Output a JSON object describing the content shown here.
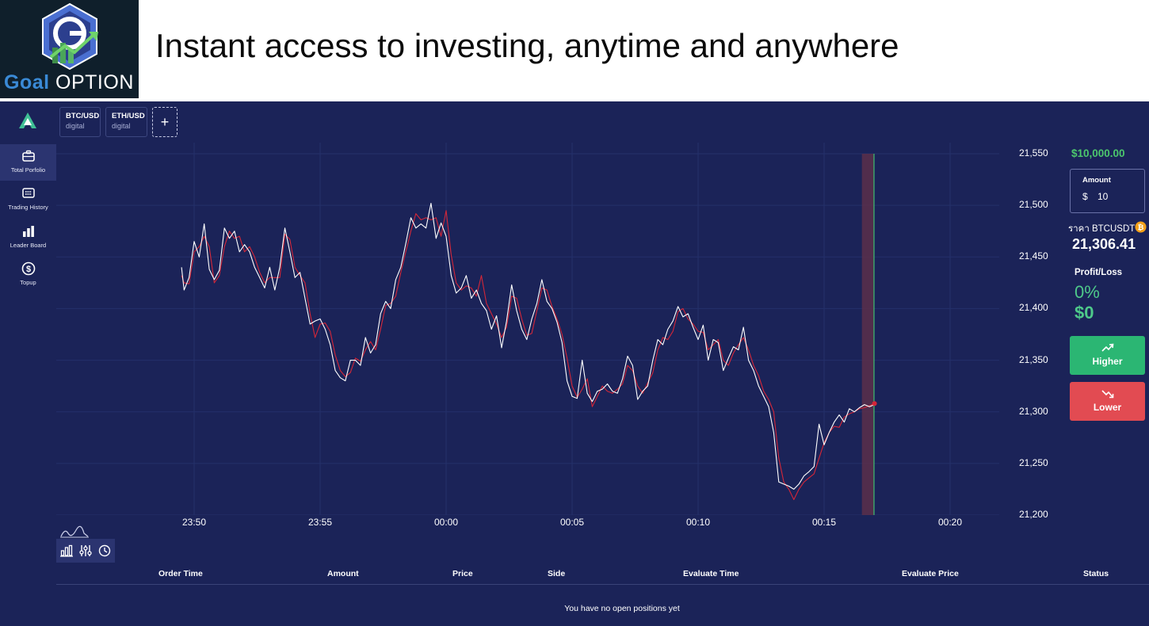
{
  "banner": {
    "logo_goal": "Goal",
    "logo_option": "OPTION",
    "headline": "Instant access to investing, anytime and anywhere"
  },
  "sidebar": {
    "items": [
      {
        "label": "Total Porfolio",
        "icon": "briefcase-icon",
        "active": true
      },
      {
        "label": "Trading History",
        "icon": "history-list-icon",
        "active": false
      },
      {
        "label": "Leader Board",
        "icon": "bar-chart-icon",
        "active": false
      },
      {
        "label": "Topup",
        "icon": "dollar-circle-icon",
        "active": false
      }
    ]
  },
  "tabs": [
    {
      "symbol": "BTC/USD",
      "type": "digital"
    },
    {
      "symbol": "ETH/USD",
      "type": "digital"
    }
  ],
  "add_tab_label": "+",
  "chart_data": {
    "type": "line",
    "x_tick_labels": [
      "23:50",
      "23:55",
      "00:00",
      "00:05",
      "00:10",
      "00:15",
      "00:20"
    ],
    "y_tick_labels": [
      "21,550",
      "21,500",
      "21,450",
      "21,400",
      "21,350",
      "21,300",
      "21,250",
      "21,200"
    ],
    "ylim": [
      21200,
      21550
    ],
    "x_unit": "minutes relative to 00:00",
    "xlim": [
      -11.5,
      24
    ],
    "grid": true,
    "series": [
      {
        "color": "#ffffff",
        "points": [
          [
            -10.5,
            21440
          ],
          [
            -10.4,
            21418
          ],
          [
            -10.2,
            21430
          ],
          [
            -10.0,
            21465
          ],
          [
            -9.8,
            21450
          ],
          [
            -9.6,
            21482
          ],
          [
            -9.4,
            21438
          ],
          [
            -9.2,
            21428
          ],
          [
            -9.0,
            21437
          ],
          [
            -8.8,
            21478
          ],
          [
            -8.6,
            21468
          ],
          [
            -8.4,
            21475
          ],
          [
            -8.2,
            21455
          ],
          [
            -8.0,
            21462
          ],
          [
            -7.8,
            21455
          ],
          [
            -7.6,
            21440
          ],
          [
            -7.4,
            21430
          ],
          [
            -7.2,
            21420
          ],
          [
            -7.0,
            21440
          ],
          [
            -6.8,
            21418
          ],
          [
            -6.6,
            21440
          ],
          [
            -6.4,
            21478
          ],
          [
            -6.2,
            21455
          ],
          [
            -6.0,
            21430
          ],
          [
            -5.8,
            21435
          ],
          [
            -5.6,
            21410
          ],
          [
            -5.4,
            21385
          ],
          [
            -5.2,
            21388
          ],
          [
            -5.0,
            21390
          ],
          [
            -4.8,
            21380
          ],
          [
            -4.6,
            21365
          ],
          [
            -4.4,
            21340
          ],
          [
            -4.2,
            21333
          ],
          [
            -4.0,
            21330
          ],
          [
            -3.8,
            21350
          ],
          [
            -3.6,
            21350
          ],
          [
            -3.4,
            21345
          ],
          [
            -3.2,
            21372
          ],
          [
            -3.0,
            21357
          ],
          [
            -2.8,
            21365
          ],
          [
            -2.6,
            21395
          ],
          [
            -2.4,
            21407
          ],
          [
            -2.2,
            21400
          ],
          [
            -2.0,
            21428
          ],
          [
            -1.8,
            21440
          ],
          [
            -1.6,
            21463
          ],
          [
            -1.4,
            21488
          ],
          [
            -1.2,
            21478
          ],
          [
            -1.0,
            21482
          ],
          [
            -0.8,
            21478
          ],
          [
            -0.6,
            21502
          ],
          [
            -0.4,
            21468
          ],
          [
            -0.2,
            21483
          ],
          [
            0.0,
            21470
          ],
          [
            0.2,
            21432
          ],
          [
            0.4,
            21415
          ],
          [
            0.6,
            21420
          ],
          [
            0.8,
            21432
          ],
          [
            1.0,
            21410
          ],
          [
            1.2,
            21418
          ],
          [
            1.4,
            21405
          ],
          [
            1.6,
            21398
          ],
          [
            1.8,
            21380
          ],
          [
            2.0,
            21393
          ],
          [
            2.2,
            21362
          ],
          [
            2.4,
            21388
          ],
          [
            2.6,
            21423
          ],
          [
            2.8,
            21398
          ],
          [
            3.0,
            21380
          ],
          [
            3.2,
            21370
          ],
          [
            3.4,
            21390
          ],
          [
            3.6,
            21405
          ],
          [
            3.8,
            21428
          ],
          [
            4.0,
            21407
          ],
          [
            4.2,
            21400
          ],
          [
            4.4,
            21387
          ],
          [
            4.6,
            21367
          ],
          [
            4.8,
            21330
          ],
          [
            5.0,
            21315
          ],
          [
            5.2,
            21313
          ],
          [
            5.4,
            21350
          ],
          [
            5.6,
            21318
          ],
          [
            5.8,
            21310
          ],
          [
            6.0,
            21320
          ],
          [
            6.2,
            21322
          ],
          [
            6.4,
            21327
          ],
          [
            6.6,
            21320
          ],
          [
            6.8,
            21318
          ],
          [
            7.0,
            21332
          ],
          [
            7.2,
            21354
          ],
          [
            7.4,
            21345
          ],
          [
            7.6,
            21312
          ],
          [
            7.8,
            21320
          ],
          [
            8.0,
            21325
          ],
          [
            8.2,
            21350
          ],
          [
            8.4,
            21370
          ],
          [
            8.6,
            21365
          ],
          [
            8.8,
            21380
          ],
          [
            9.0,
            21388
          ],
          [
            9.2,
            21402
          ],
          [
            9.4,
            21392
          ],
          [
            9.6,
            21395
          ],
          [
            9.8,
            21382
          ],
          [
            10.0,
            21370
          ],
          [
            10.2,
            21384
          ],
          [
            10.4,
            21350
          ],
          [
            10.6,
            21370
          ],
          [
            10.8,
            21367
          ],
          [
            11.0,
            21340
          ],
          [
            11.2,
            21352
          ],
          [
            11.4,
            21363
          ],
          [
            11.6,
            21360
          ],
          [
            11.8,
            21382
          ],
          [
            12.0,
            21350
          ],
          [
            12.2,
            21340
          ],
          [
            12.4,
            21325
          ],
          [
            12.6,
            21315
          ],
          [
            12.8,
            21305
          ],
          [
            13.0,
            21280
          ],
          [
            13.2,
            21232
          ],
          [
            13.4,
            21230
          ],
          [
            13.6,
            21228
          ],
          [
            13.8,
            21225
          ],
          [
            14.0,
            21230
          ],
          [
            14.2,
            21238
          ],
          [
            14.4,
            21242
          ],
          [
            14.6,
            21247
          ],
          [
            14.8,
            21288
          ],
          [
            15.0,
            21268
          ],
          [
            15.2,
            21280
          ],
          [
            15.4,
            21290
          ],
          [
            15.6,
            21297
          ],
          [
            15.8,
            21290
          ],
          [
            16.0,
            21303
          ],
          [
            16.2,
            21300
          ],
          [
            16.4,
            21304
          ],
          [
            16.6,
            21307
          ],
          [
            16.8,
            21305
          ],
          [
            17.0,
            21307
          ]
        ]
      },
      {
        "color": "#d42638",
        "points": [
          [
            -10.5,
            21432
          ],
          [
            -10.4,
            21425
          ],
          [
            -10.2,
            21424
          ],
          [
            -10.0,
            21455
          ],
          [
            -9.8,
            21460
          ],
          [
            -9.6,
            21470
          ],
          [
            -9.4,
            21460
          ],
          [
            -9.2,
            21425
          ],
          [
            -9.0,
            21432
          ],
          [
            -8.8,
            21460
          ],
          [
            -8.6,
            21475
          ],
          [
            -8.4,
            21468
          ],
          [
            -8.2,
            21470
          ],
          [
            -8.0,
            21455
          ],
          [
            -7.8,
            21460
          ],
          [
            -7.6,
            21450
          ],
          [
            -7.4,
            21435
          ],
          [
            -7.2,
            21425
          ],
          [
            -7.0,
            21430
          ],
          [
            -6.8,
            21430
          ],
          [
            -6.6,
            21430
          ],
          [
            -6.4,
            21472
          ],
          [
            -6.2,
            21467
          ],
          [
            -6.0,
            21440
          ],
          [
            -5.8,
            21432
          ],
          [
            -5.6,
            21425
          ],
          [
            -5.4,
            21395
          ],
          [
            -5.2,
            21372
          ],
          [
            -5.0,
            21385
          ],
          [
            -4.8,
            21386
          ],
          [
            -4.6,
            21378
          ],
          [
            -4.4,
            21355
          ],
          [
            -4.2,
            21340
          ],
          [
            -4.0,
            21334
          ],
          [
            -3.8,
            21338
          ],
          [
            -3.6,
            21352
          ],
          [
            -3.4,
            21349
          ],
          [
            -3.2,
            21360
          ],
          [
            -3.0,
            21368
          ],
          [
            -2.8,
            21360
          ],
          [
            -2.6,
            21380
          ],
          [
            -2.4,
            21403
          ],
          [
            -2.2,
            21405
          ],
          [
            -2.0,
            21412
          ],
          [
            -1.8,
            21435
          ],
          [
            -1.6,
            21455
          ],
          [
            -1.4,
            21475
          ],
          [
            -1.2,
            21492
          ],
          [
            -1.0,
            21486
          ],
          [
            -0.8,
            21488
          ],
          [
            -0.6,
            21486
          ],
          [
            -0.4,
            21488
          ],
          [
            -0.2,
            21470
          ],
          [
            0.0,
            21495
          ],
          [
            0.2,
            21452
          ],
          [
            0.4,
            21425
          ],
          [
            0.6,
            21418
          ],
          [
            0.8,
            21422
          ],
          [
            1.0,
            21420
          ],
          [
            1.2,
            21412
          ],
          [
            1.4,
            21432
          ],
          [
            1.6,
            21405
          ],
          [
            1.8,
            21395
          ],
          [
            2.0,
            21385
          ],
          [
            2.2,
            21372
          ],
          [
            2.4,
            21382
          ],
          [
            2.6,
            21412
          ],
          [
            2.8,
            21410
          ],
          [
            3.0,
            21390
          ],
          [
            3.2,
            21374
          ],
          [
            3.4,
            21376
          ],
          [
            3.6,
            21398
          ],
          [
            3.8,
            21420
          ],
          [
            4.0,
            21418
          ],
          [
            4.2,
            21402
          ],
          [
            4.4,
            21390
          ],
          [
            4.6,
            21375
          ],
          [
            4.8,
            21352
          ],
          [
            5.0,
            21325
          ],
          [
            5.2,
            21314
          ],
          [
            5.4,
            21322
          ],
          [
            5.6,
            21332
          ],
          [
            5.8,
            21305
          ],
          [
            6.0,
            21315
          ],
          [
            6.2,
            21325
          ],
          [
            6.4,
            21320
          ],
          [
            6.6,
            21318
          ],
          [
            6.8,
            21322
          ],
          [
            7.0,
            21327
          ],
          [
            7.2,
            21345
          ],
          [
            7.4,
            21340
          ],
          [
            7.6,
            21325
          ],
          [
            7.8,
            21318
          ],
          [
            8.0,
            21328
          ],
          [
            8.2,
            21338
          ],
          [
            8.4,
            21360
          ],
          [
            8.6,
            21372
          ],
          [
            8.8,
            21370
          ],
          [
            9.0,
            21378
          ],
          [
            9.2,
            21397
          ],
          [
            9.4,
            21400
          ],
          [
            9.6,
            21390
          ],
          [
            9.8,
            21385
          ],
          [
            10.0,
            21378
          ],
          [
            10.2,
            21377
          ],
          [
            10.4,
            21360
          ],
          [
            10.6,
            21365
          ],
          [
            10.8,
            21370
          ],
          [
            11.0,
            21350
          ],
          [
            11.2,
            21345
          ],
          [
            11.4,
            21357
          ],
          [
            11.6,
            21365
          ],
          [
            11.8,
            21372
          ],
          [
            12.0,
            21360
          ],
          [
            12.2,
            21345
          ],
          [
            12.4,
            21335
          ],
          [
            12.6,
            21320
          ],
          [
            12.8,
            21312
          ],
          [
            13.0,
            21300
          ],
          [
            13.2,
            21255
          ],
          [
            13.4,
            21232
          ],
          [
            13.6,
            21225
          ],
          [
            13.8,
            21215
          ],
          [
            14.0,
            21225
          ],
          [
            14.2,
            21232
          ],
          [
            14.4,
            21236
          ],
          [
            14.6,
            21240
          ],
          [
            14.8,
            21255
          ],
          [
            15.0,
            21270
          ],
          [
            15.2,
            21280
          ],
          [
            15.4,
            21286
          ],
          [
            15.6,
            21285
          ],
          [
            15.8,
            21295
          ],
          [
            16.0,
            21298
          ],
          [
            16.2,
            21300
          ],
          [
            16.4,
            21303
          ],
          [
            16.6,
            21304
          ],
          [
            16.8,
            21306
          ],
          [
            17.0,
            21308
          ]
        ]
      }
    ],
    "marker": {
      "x_start": 16.5,
      "x_end": 16.98,
      "band_color": "#5a2f4a",
      "line_color": "#3fbf6f"
    }
  },
  "right_panel": {
    "balance": "$10,000.00",
    "amount_label": "Amount",
    "amount_currency": "$",
    "amount_value": "10",
    "price_label": "ราคา BTCUSDT",
    "price_value": "21,306.41",
    "profit_loss_label": "Profit/Loss",
    "profit_loss_pct": "0%",
    "profit_loss_amt": "$0",
    "higher_label": "Higher",
    "lower_label": "Lower",
    "higher_color": "#2bb673",
    "lower_color": "#e24b52"
  },
  "positions_table": {
    "columns": [
      "Order Time",
      "Amount",
      "Price",
      "Side",
      "Evaluate Time",
      "Evaluate Price",
      "Status"
    ],
    "empty_message": "You have no open positions yet"
  }
}
